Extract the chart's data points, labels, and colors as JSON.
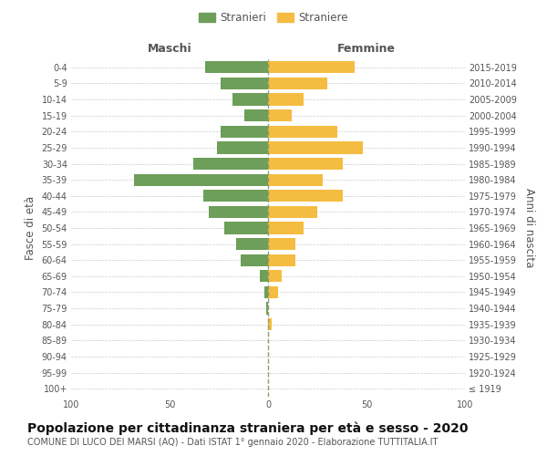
{
  "age_groups": [
    "100+",
    "95-99",
    "90-94",
    "85-89",
    "80-84",
    "75-79",
    "70-74",
    "65-69",
    "60-64",
    "55-59",
    "50-54",
    "45-49",
    "40-44",
    "35-39",
    "30-34",
    "25-29",
    "20-24",
    "15-19",
    "10-14",
    "5-9",
    "0-4"
  ],
  "birth_years": [
    "≤ 1919",
    "1920-1924",
    "1925-1929",
    "1930-1934",
    "1935-1939",
    "1940-1944",
    "1945-1949",
    "1950-1954",
    "1955-1959",
    "1960-1964",
    "1965-1969",
    "1970-1974",
    "1975-1979",
    "1980-1984",
    "1985-1989",
    "1990-1994",
    "1995-1999",
    "2000-2004",
    "2005-2009",
    "2010-2014",
    "2015-2019"
  ],
  "maschi": [
    0,
    0,
    0,
    0,
    0,
    1,
    2,
    4,
    14,
    16,
    22,
    30,
    33,
    68,
    38,
    26,
    24,
    12,
    18,
    24,
    32
  ],
  "femmine": [
    0,
    0,
    0,
    0,
    2,
    0,
    5,
    7,
    14,
    14,
    18,
    25,
    38,
    28,
    38,
    48,
    35,
    12,
    18,
    30,
    44
  ],
  "maschi_color": "#6d9e5a",
  "femmine_color": "#f5bc42",
  "xlim": 100,
  "title": "Popolazione per cittadinanza straniera per età e sesso - 2020",
  "subtitle": "COMUNE DI LUCO DEI MARSI (AQ) - Dati ISTAT 1° gennaio 2020 - Elaborazione TUTTITALIA.IT",
  "ylabel_left": "Fasce di età",
  "ylabel_right": "Anni di nascita",
  "legend_maschi": "Stranieri",
  "legend_femmine": "Straniere",
  "header_maschi": "Maschi",
  "header_femmine": "Femmine",
  "bg_color": "#ffffff",
  "grid_color": "#cccccc",
  "text_color": "#555555",
  "title_fontsize": 10,
  "subtitle_fontsize": 7,
  "tick_fontsize": 7,
  "label_fontsize": 8.5,
  "header_fontsize": 9,
  "legend_fontsize": 8.5
}
